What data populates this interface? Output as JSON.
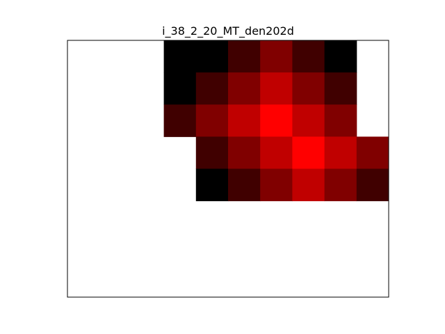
{
  "chart_data": {
    "type": "heatmap",
    "title": "i_38_2_20_MT_den202d",
    "xlabel": "",
    "ylabel": "",
    "grid": false,
    "axis_ticks": false,
    "x_range": [
      0,
      10
    ],
    "y_range": [
      0,
      8
    ],
    "colormap": [
      "#000000",
      "#400000",
      "#800000",
      "#c00000",
      "#ff0000"
    ],
    "empty_color": "#ffffff",
    "frame_color": "#000000",
    "levels": [
      [
        null,
        null,
        null,
        0,
        0,
        1,
        2,
        1,
        0,
        null
      ],
      [
        null,
        null,
        null,
        0,
        1,
        2,
        3,
        2,
        1,
        null
      ],
      [
        null,
        null,
        null,
        1,
        2,
        3,
        4,
        3,
        2,
        null
      ],
      [
        null,
        null,
        null,
        null,
        1,
        2,
        3,
        4,
        3,
        2
      ],
      [
        null,
        null,
        null,
        null,
        0,
        1,
        2,
        3,
        2,
        1
      ],
      [
        null,
        null,
        null,
        null,
        null,
        null,
        null,
        null,
        null,
        null
      ],
      [
        null,
        null,
        null,
        null,
        null,
        null,
        null,
        null,
        null,
        null
      ],
      [
        null,
        null,
        null,
        null,
        null,
        null,
        null,
        null,
        null,
        null
      ]
    ]
  }
}
